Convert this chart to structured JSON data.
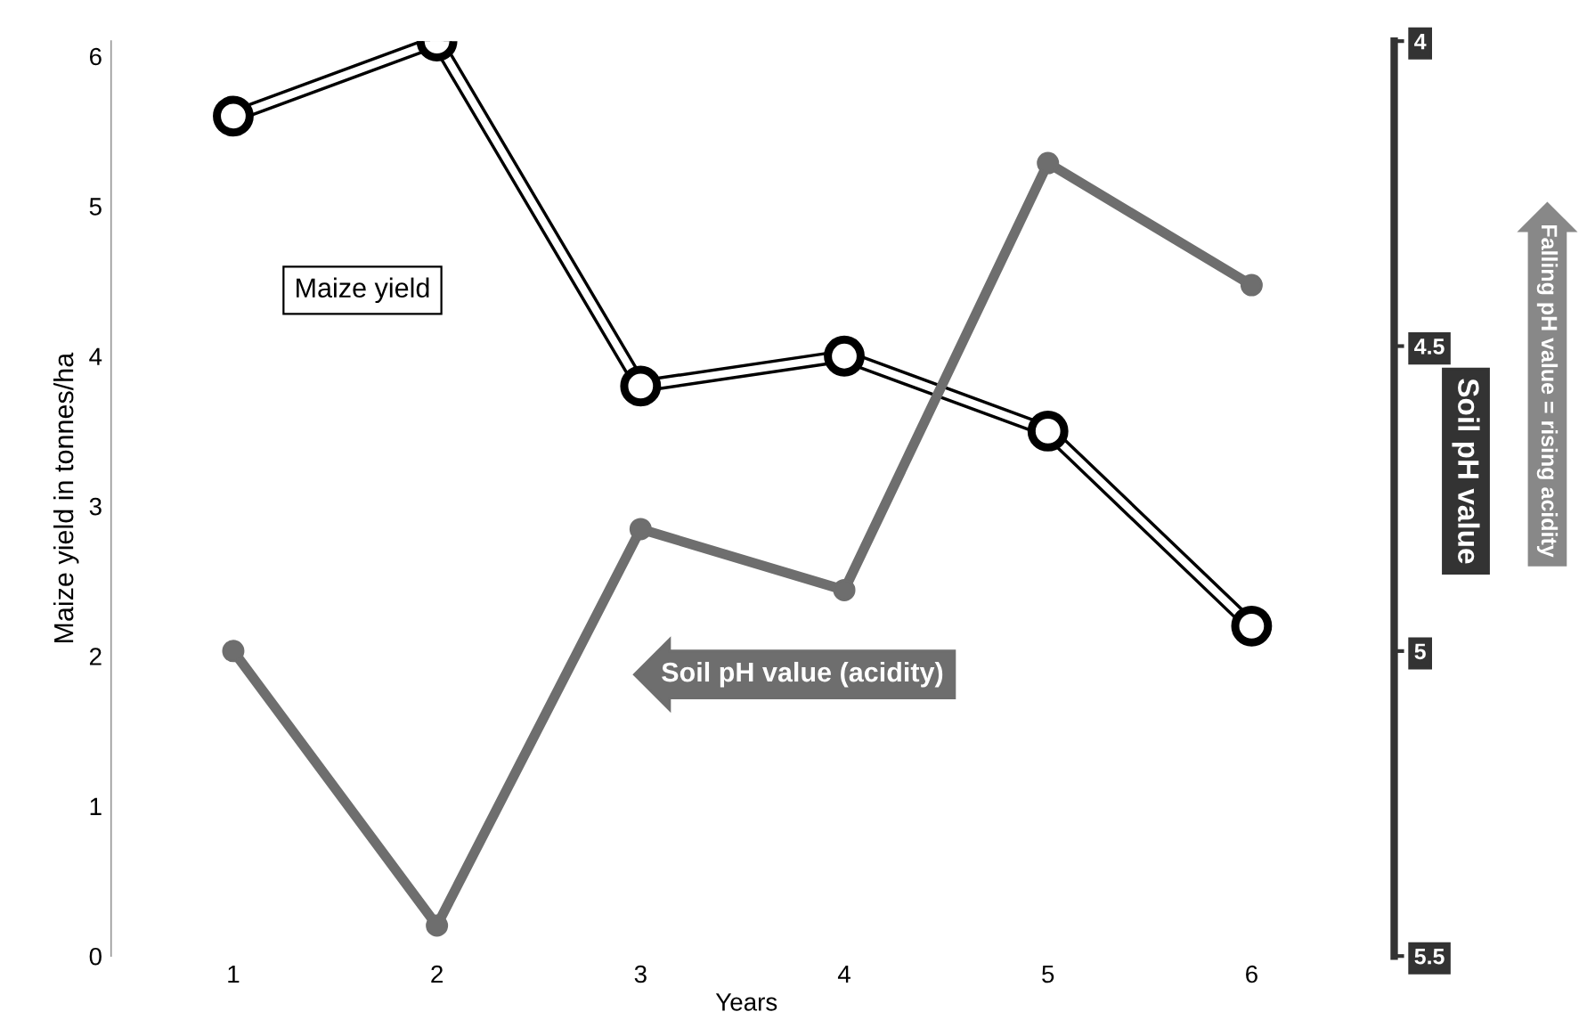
{
  "chart_data": {
    "type": "line",
    "xlabel": "Years",
    "ylabel": "Maize yield in tonnes/ha",
    "y2label": "Soil pH value",
    "categories": [
      "1",
      "2",
      "3",
      "4",
      "5",
      "6"
    ],
    "series": [
      {
        "name": "Maize yield",
        "color": "#ffffff",
        "values": [
          5.6,
          6.1,
          3.8,
          4.0,
          3.5,
          2.2
        ]
      },
      {
        "name": "Soil pH value (acidity)",
        "color": "#6e6e6e",
        "axis": "y2",
        "values": [
          5.0,
          5.45,
          4.8,
          4.9,
          4.2,
          4.4
        ]
      }
    ],
    "ylim": [
      0,
      6.1
    ],
    "yticks": [
      0,
      1,
      2,
      3,
      4,
      5,
      6
    ],
    "y2lim": [
      5.5,
      4
    ],
    "y2ticks": [
      4,
      4.5,
      5,
      5.5
    ],
    "marker": "circle",
    "line_style": "solid",
    "grid": false,
    "legend": false,
    "annotations": [
      "Falling pH value = rising acidity"
    ]
  }
}
